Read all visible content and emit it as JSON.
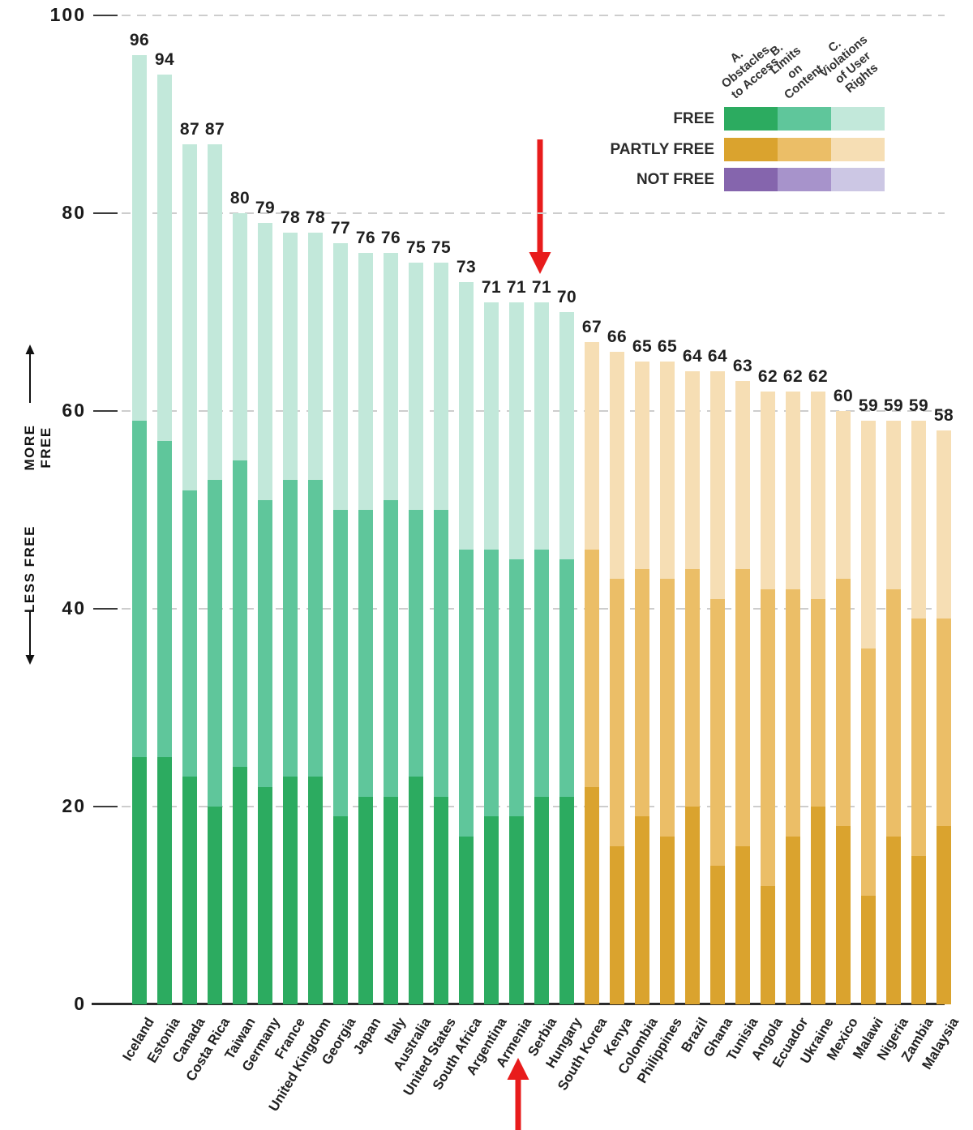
{
  "axis": {
    "y_ticks": [
      0,
      20,
      40,
      60,
      80,
      100
    ],
    "more_free_label": "MORE FREE",
    "less_free_label": "LESS FREE"
  },
  "legend": {
    "column_headers": [
      "A. Obstacles\nto Access",
      "B. Limits on\nContent",
      "C. Violations\nof User Rights"
    ],
    "rows": [
      {
        "label": "FREE",
        "colors": [
          "#2CAB60",
          "#5FC69B",
          "#C2E8DA"
        ]
      },
      {
        "label": "PARTLY FREE",
        "colors": [
          "#DAA32E",
          "#EBBE67",
          "#F6DEB4"
        ]
      },
      {
        "label": "NOT FREE",
        "colors": [
          "#8565AD",
          "#A793CB",
          "#CCC7E4"
        ]
      }
    ]
  },
  "annotations": {
    "highlighted_country": "Serbia",
    "arrow_color": "#E81C1C"
  },
  "chart_data": {
    "type": "bar",
    "stacked": true,
    "ylim": [
      0,
      100
    ],
    "grid": "dashed horizontal lines every 20 units",
    "legend_position": "top-right",
    "series_keys": [
      "A. Obstacles to Access",
      "B. Limits on Content",
      "C. Violations of User Rights"
    ],
    "countries": [
      {
        "name": "Iceland",
        "status": "free",
        "total": 96,
        "a": 25,
        "b": 34,
        "c": 37
      },
      {
        "name": "Estonia",
        "status": "free",
        "total": 94,
        "a": 25,
        "b": 32,
        "c": 37
      },
      {
        "name": "Canada",
        "status": "free",
        "total": 87,
        "a": 23,
        "b": 29,
        "c": 35
      },
      {
        "name": "Costa Rica",
        "status": "free",
        "total": 87,
        "a": 20,
        "b": 33,
        "c": 34
      },
      {
        "name": "Taiwan",
        "status": "free",
        "total": 80,
        "a": 24,
        "b": 31,
        "c": 25
      },
      {
        "name": "Germany",
        "status": "free",
        "total": 79,
        "a": 22,
        "b": 29,
        "c": 28
      },
      {
        "name": "France",
        "status": "free",
        "total": 78,
        "a": 23,
        "b": 30,
        "c": 25
      },
      {
        "name": "United Kingdom",
        "status": "free",
        "total": 78,
        "a": 23,
        "b": 30,
        "c": 25
      },
      {
        "name": "Georgia",
        "status": "free",
        "total": 77,
        "a": 19,
        "b": 31,
        "c": 27
      },
      {
        "name": "Japan",
        "status": "free",
        "total": 76,
        "a": 21,
        "b": 29,
        "c": 26
      },
      {
        "name": "Italy",
        "status": "free",
        "total": 76,
        "a": 21,
        "b": 30,
        "c": 25
      },
      {
        "name": "Australia",
        "status": "free",
        "total": 75,
        "a": 23,
        "b": 27,
        "c": 25
      },
      {
        "name": "United States",
        "status": "free",
        "total": 75,
        "a": 21,
        "b": 29,
        "c": 25
      },
      {
        "name": "South Africa",
        "status": "free",
        "total": 73,
        "a": 17,
        "b": 29,
        "c": 27
      },
      {
        "name": "Argentina",
        "status": "free",
        "total": 71,
        "a": 19,
        "b": 27,
        "c": 25
      },
      {
        "name": "Armenia",
        "status": "free",
        "total": 71,
        "a": 19,
        "b": 26,
        "c": 26
      },
      {
        "name": "Serbia",
        "status": "free",
        "total": 71,
        "a": 21,
        "b": 25,
        "c": 25
      },
      {
        "name": "Hungary",
        "status": "free",
        "total": 70,
        "a": 21,
        "b": 24,
        "c": 25
      },
      {
        "name": "South Korea",
        "status": "partly-free",
        "total": 67,
        "a": 22,
        "b": 24,
        "c": 21
      },
      {
        "name": "Kenya",
        "status": "partly-free",
        "total": 66,
        "a": 16,
        "b": 27,
        "c": 23
      },
      {
        "name": "Colombia",
        "status": "partly-free",
        "total": 65,
        "a": 19,
        "b": 25,
        "c": 21
      },
      {
        "name": "Philippines",
        "status": "partly-free",
        "total": 65,
        "a": 17,
        "b": 26,
        "c": 22
      },
      {
        "name": "Brazil",
        "status": "partly-free",
        "total": 64,
        "a": 20,
        "b": 24,
        "c": 20
      },
      {
        "name": "Ghana",
        "status": "partly-free",
        "total": 64,
        "a": 14,
        "b": 27,
        "c": 23
      },
      {
        "name": "Tunisia",
        "status": "partly-free",
        "total": 63,
        "a": 16,
        "b": 28,
        "c": 19
      },
      {
        "name": "Angola",
        "status": "partly-free",
        "total": 62,
        "a": 12,
        "b": 30,
        "c": 20
      },
      {
        "name": "Ecuador",
        "status": "partly-free",
        "total": 62,
        "a": 17,
        "b": 25,
        "c": 20
      },
      {
        "name": "Ukraine",
        "status": "partly-free",
        "total": 62,
        "a": 20,
        "b": 21,
        "c": 21
      },
      {
        "name": "Mexico",
        "status": "partly-free",
        "total": 60,
        "a": 18,
        "b": 25,
        "c": 17
      },
      {
        "name": "Malawi",
        "status": "partly-free",
        "total": 59,
        "a": 11,
        "b": 25,
        "c": 23
      },
      {
        "name": "Nigeria",
        "status": "partly-free",
        "total": 59,
        "a": 17,
        "b": 25,
        "c": 17
      },
      {
        "name": "Zambia",
        "status": "partly-free",
        "total": 59,
        "a": 15,
        "b": 24,
        "c": 20
      },
      {
        "name": "Malaysia",
        "status": "partly-free",
        "total": 58,
        "a": 18,
        "b": 21,
        "c": 19
      }
    ]
  }
}
